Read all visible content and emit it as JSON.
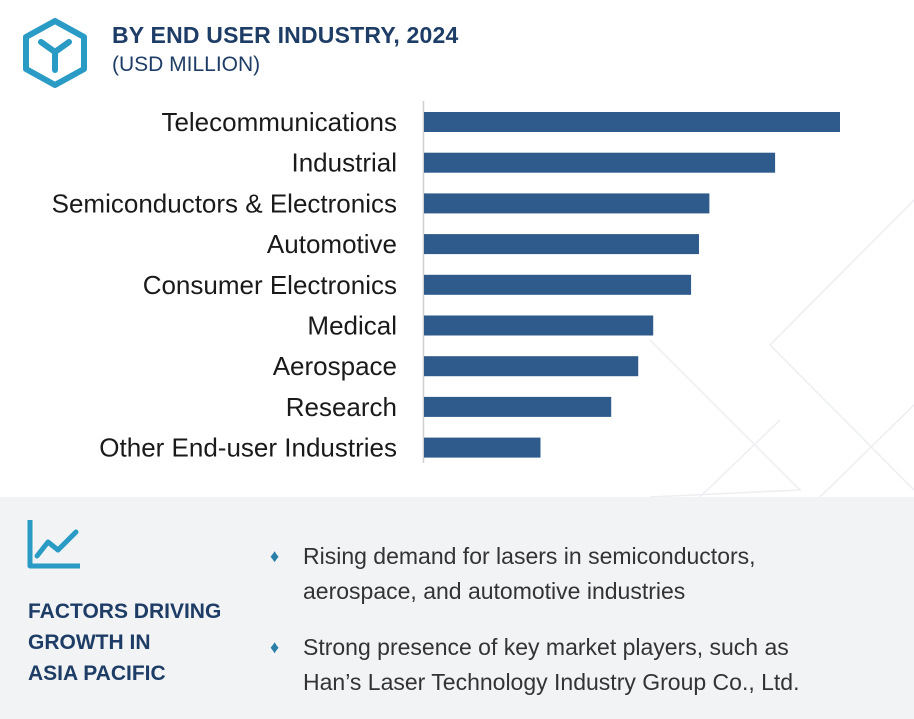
{
  "header": {
    "title": "BY END USER INDUSTRY, 2024",
    "subtitle": "(USD MILLION)"
  },
  "chart_data": {
    "type": "bar",
    "orientation": "horizontal",
    "title": "BY END USER INDUSTRY, 2024",
    "subtitle": "(USD MILLION)",
    "categories": [
      "Telecommunications",
      "Industrial",
      "Semiconductors & Electronics",
      "Automotive",
      "Consumer Electronics",
      "Medical",
      "Aerospace",
      "Research",
      "Other End-user Industries"
    ],
    "values": [
      100,
      84.4,
      68.6,
      66.1,
      64.2,
      55.1,
      51.5,
      45.0,
      28.0
    ],
    "value_scale": "relative (no value axis shown)",
    "xlim": [
      0,
      100
    ],
    "grid": false,
    "legend": "none",
    "bar_color": "#2e5a8c"
  },
  "factors": {
    "heading_lines": [
      "FACTORS DRIVING",
      "GROWTH IN",
      "ASIA PACIFIC"
    ],
    "bullets": [
      {
        "lines": [
          "Rising demand for lasers in semiconductors,",
          "aerospace, and automotive industries"
        ]
      },
      {
        "lines": [
          "Strong presence of key market players, such as",
          "Han’s Laser Technology Industry Group Co., Ltd."
        ]
      }
    ],
    "bullet_symbol": "♦"
  },
  "colors": {
    "brand": "#2a9bc4",
    "heading": "#1e3d66",
    "bar": "#2e5a8c",
    "panel_bg": "#f2f3f5"
  },
  "icons": [
    "logo-icon",
    "trend-chart-icon",
    "diamond-bullet-icon"
  ]
}
